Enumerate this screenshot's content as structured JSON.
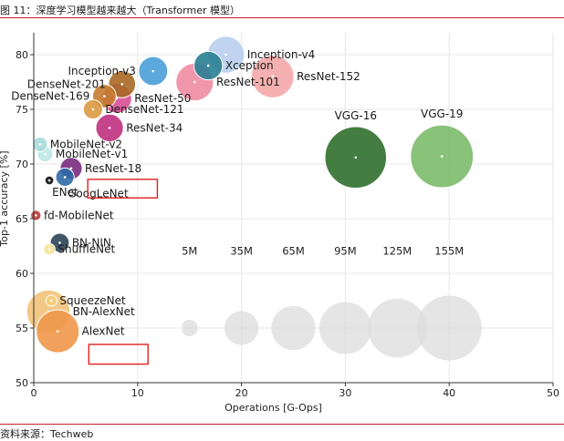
{
  "figure": {
    "title": "图 11：深度学习模型越来越大（Transformer 模型）",
    "source": "资料来源：Techweb"
  },
  "chart_data": {
    "type": "scatter",
    "title": "",
    "xlabel": "Operations [G-Ops]",
    "ylabel": "Top-1 accuracy [%]",
    "xlim": [
      0,
      50
    ],
    "ylim": [
      50,
      82
    ],
    "xticks": [
      0,
      10,
      20,
      30,
      40,
      50
    ],
    "yticks": [
      50,
      55,
      60,
      65,
      70,
      75,
      80
    ],
    "grid": true,
    "points": [
      {
        "name": "Inception-v4",
        "ops": 18.5,
        "acc": 80.0,
        "params_m": 43,
        "color": "#b9cfee",
        "label_pos": "right"
      },
      {
        "name": "Xception",
        "ops": 16.8,
        "acc": 79.0,
        "params_m": 23,
        "color": "#2a7e93",
        "label_pos": "right"
      },
      {
        "name": "Inception-v3",
        "ops": 11.5,
        "acc": 78.5,
        "params_m": 24,
        "color": "#4a9fd8",
        "label_pos": "left"
      },
      {
        "name": "ResNet-152",
        "ops": 23.0,
        "acc": 78.0,
        "params_m": 60,
        "color": "#f4a8a8",
        "label_pos": "right"
      },
      {
        "name": "ResNet-101",
        "ops": 15.5,
        "acc": 77.5,
        "params_m": 45,
        "color": "#ef8ca3",
        "label_pos": "right"
      },
      {
        "name": "DenseNet-201",
        "ops": 8.5,
        "acc": 77.3,
        "params_m": 20,
        "color": "#a86823",
        "label_pos": "left"
      },
      {
        "name": "DenseNet-169",
        "ops": 6.8,
        "acc": 76.2,
        "params_m": 14,
        "color": "#c57b2e",
        "label_pos": "left"
      },
      {
        "name": "ResNet-50",
        "ops": 8.0,
        "acc": 76.0,
        "params_m": 25,
        "color": "#d94f94",
        "label_pos": "right"
      },
      {
        "name": "DenseNet-121",
        "ops": 5.7,
        "acc": 75.0,
        "params_m": 8,
        "color": "#d99a42",
        "label_pos": "right"
      },
      {
        "name": "ResNet-34",
        "ops": 7.3,
        "acc": 73.3,
        "params_m": 21,
        "color": "#c0307f",
        "label_pos": "right"
      },
      {
        "name": "VGG-16",
        "ops": 31.0,
        "acc": 70.6,
        "params_m": 138,
        "color": "#2f6f2c",
        "label_pos": "top"
      },
      {
        "name": "VGG-19",
        "ops": 39.3,
        "acc": 70.7,
        "params_m": 144,
        "color": "#7cbb6a",
        "label_pos": "top"
      },
      {
        "name": "MobileNet-v2",
        "ops": 0.6,
        "acc": 71.8,
        "params_m": 3.5,
        "color": "#a6dcd9",
        "label_pos": "right"
      },
      {
        "name": "MobileNet-v1",
        "ops": 1.1,
        "acc": 70.9,
        "params_m": 4.2,
        "color": "#bde8e6",
        "label_pos": "right"
      },
      {
        "name": "ResNet-18",
        "ops": 3.6,
        "acc": 69.6,
        "params_m": 11.7,
        "color": "#7b2a7d",
        "label_pos": "right"
      },
      {
        "name": "GoogLeNet",
        "ops": 3.0,
        "acc": 68.8,
        "params_m": 7,
        "color": "#2f6aa6",
        "label_pos": "below-right"
      },
      {
        "name": "ENet",
        "ops": 1.5,
        "acc": 68.5,
        "params_m": 0.4,
        "color": "#111111",
        "label_pos": "below-right"
      },
      {
        "name": "fd-MobileNet",
        "ops": 0.2,
        "acc": 65.3,
        "params_m": 0.9,
        "color": "#b83a3a",
        "label_pos": "right"
      },
      {
        "name": "BN-NIN",
        "ops": 2.5,
        "acc": 62.8,
        "params_m": 7.6,
        "color": "#2b4558",
        "label_pos": "right"
      },
      {
        "name": "ShuffleNet",
        "ops": 1.5,
        "acc": 62.2,
        "params_m": 1.4,
        "color": "#f3e49a",
        "label_pos": "right"
      },
      {
        "name": "SqueezeNet",
        "ops": 1.7,
        "acc": 57.5,
        "params_m": 1.2,
        "color": "#f5cc74",
        "label_pos": "right"
      },
      {
        "name": "BN-AlexNet",
        "ops": 1.4,
        "acc": 56.5,
        "params_m": 62,
        "color": "#f2c27a",
        "label_pos": "right"
      },
      {
        "name": "AlexNet",
        "ops": 2.3,
        "acc": 54.7,
        "params_m": 61,
        "color": "#f0974a",
        "label_pos": "right"
      }
    ],
    "size_legend": [
      {
        "label": "5M",
        "params_m": 5,
        "ops": 15
      },
      {
        "label": "35M",
        "params_m": 35,
        "ops": 20
      },
      {
        "label": "65M",
        "params_m": 65,
        "ops": 25
      },
      {
        "label": "95M",
        "params_m": 95,
        "ops": 30
      },
      {
        "label": "125M",
        "params_m": 125,
        "ops": 35
      },
      {
        "label": "155M",
        "params_m": 155,
        "ops": 40
      }
    ],
    "size_legend_y": 55,
    "size_legend_label_y": 61.7,
    "annotations": [
      {
        "name": "highlight-box-googlenet",
        "color": "#e02020",
        "x0": 5.2,
        "x1": 11.9,
        "y0": 66.9,
        "y1": 68.6
      },
      {
        "name": "highlight-box-alexnet",
        "color": "#e02020",
        "x0": 5.3,
        "x1": 11.0,
        "y0": 51.7,
        "y1": 53.5
      }
    ]
  }
}
